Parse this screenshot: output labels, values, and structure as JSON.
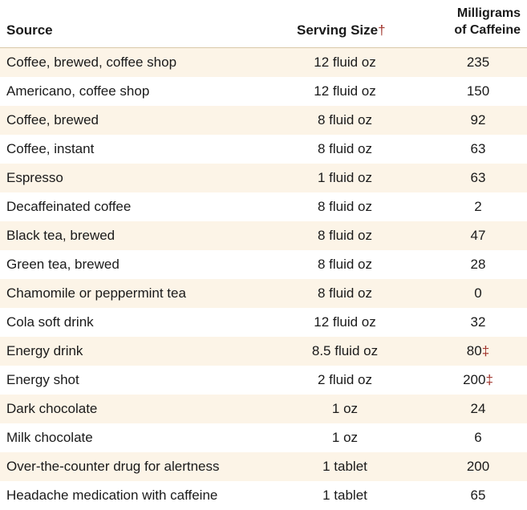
{
  "header": {
    "source": "Source",
    "serving": "Serving Size",
    "serving_mark": "†",
    "mg_line1": "Milligrams",
    "mg_line2": "of Caffeine"
  },
  "rows": [
    {
      "source": "Coffee, brewed, coffee shop",
      "serving": "12 fluid oz",
      "mg": "235",
      "mark": ""
    },
    {
      "source": "Americano, coffee shop",
      "serving": "12 fluid oz",
      "mg": "150",
      "mark": ""
    },
    {
      "source": "Coffee, brewed",
      "serving": "8 fluid oz",
      "mg": "92",
      "mark": ""
    },
    {
      "source": "Coffee, instant",
      "serving": "8 fluid oz",
      "mg": "63",
      "mark": ""
    },
    {
      "source": "Espresso",
      "serving": "1 fluid oz",
      "mg": "63",
      "mark": ""
    },
    {
      "source": "Decaffeinated coffee",
      "serving": "8 fluid oz",
      "mg": "2",
      "mark": ""
    },
    {
      "source": "Black tea, brewed",
      "serving": "8 fluid oz",
      "mg": "47",
      "mark": ""
    },
    {
      "source": "Green tea, brewed",
      "serving": "8 fluid oz",
      "mg": "28",
      "mark": ""
    },
    {
      "source": "Chamomile or peppermint tea",
      "serving": "8 fluid oz",
      "mg": "0",
      "mark": ""
    },
    {
      "source": "Cola soft drink",
      "serving": "12 fluid oz",
      "mg": "32",
      "mark": ""
    },
    {
      "source": "Energy drink",
      "serving": "8.5 fluid oz",
      "mg": "80",
      "mark": "‡"
    },
    {
      "source": "Energy shot",
      "serving": "2 fluid oz",
      "mg": "200",
      "mark": "‡"
    },
    {
      "source": "Dark chocolate",
      "serving": "1 oz",
      "mg": "24",
      "mark": ""
    },
    {
      "source": "Milk chocolate",
      "serving": "1 oz",
      "mg": "6",
      "mark": ""
    },
    {
      "source": "Over-the-counter drug for alertness",
      "serving": "1 tablet",
      "mg": "200",
      "mark": ""
    },
    {
      "source": "Headache medication with caffeine",
      "serving": "1 tablet",
      "mg": "65",
      "mark": ""
    }
  ]
}
